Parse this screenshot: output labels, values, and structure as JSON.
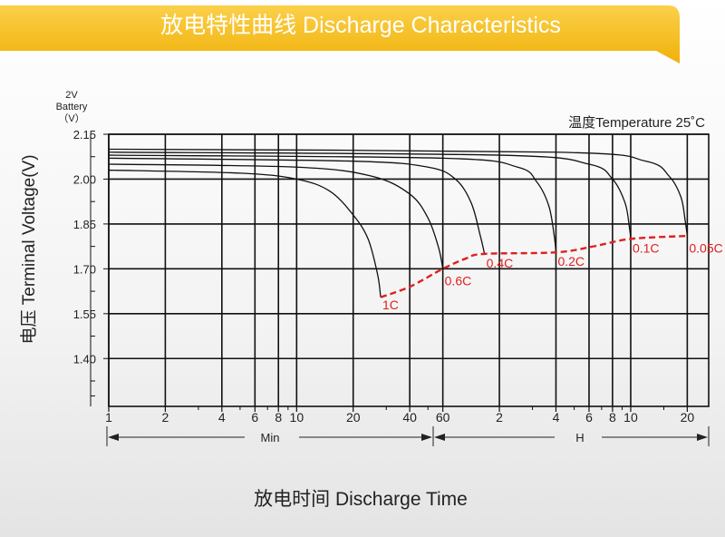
{
  "header": {
    "title": "放电特性曲线 Discharge Characteristics",
    "banner_color": "#f6be1a"
  },
  "chart_data": {
    "type": "line",
    "title": "放电特性曲线 Discharge Characteristics",
    "xlabel": "放电时间 Discharge Time",
    "ylabel": "电压 Terminal Voltage(V)",
    "y_unit_label": [
      "2V",
      "Battery",
      "（V）"
    ],
    "annotation": "温度Temperature 25˚C",
    "x_scale": "log",
    "x_unit": "minutes",
    "xlim": [
      1,
      1560
    ],
    "ylim": [
      1.24,
      2.15
    ],
    "y_ticks": [
      1.4,
      1.55,
      1.7,
      1.85,
      2.0,
      2.15
    ],
    "x_ticks_min": [
      1,
      2,
      4,
      6,
      8,
      10,
      20,
      40,
      60
    ],
    "x_ticks_hour": [
      2,
      4,
      6,
      8,
      10,
      20
    ],
    "x_segment_labels": {
      "min": "Min",
      "hour": "H"
    },
    "grid": true,
    "series": [
      {
        "name": "1C",
        "x": [
          1,
          5,
          10,
          15,
          20,
          24,
          27,
          28
        ],
        "y": [
          2.03,
          2.02,
          2.0,
          1.96,
          1.88,
          1.8,
          1.68,
          1.605
        ]
      },
      {
        "name": "0.6C",
        "x": [
          1,
          10,
          25,
          40,
          50,
          57,
          60
        ],
        "y": [
          2.05,
          2.04,
          2.01,
          1.95,
          1.87,
          1.77,
          1.7
        ]
      },
      {
        "name": "0.4C",
        "x": [
          1,
          20,
          50,
          70,
          85,
          95,
          100
        ],
        "y": [
          2.07,
          2.06,
          2.04,
          2.0,
          1.92,
          1.81,
          1.75
        ]
      },
      {
        "name": "0.2C",
        "x": [
          1,
          60,
          150,
          190,
          220,
          235,
          240
        ],
        "y": [
          2.08,
          2.07,
          2.04,
          1.99,
          1.91,
          1.81,
          1.755
        ]
      },
      {
        "name": "0.1C",
        "x": [
          1,
          120,
          360,
          480,
          560,
          590,
          600
        ],
        "y": [
          2.09,
          2.08,
          2.05,
          2.0,
          1.92,
          1.84,
          1.8
        ]
      },
      {
        "name": "0.05C",
        "x": [
          1,
          240,
          720,
          960,
          1110,
          1170,
          1200
        ],
        "y": [
          2.1,
          2.09,
          2.06,
          2.01,
          1.94,
          1.86,
          1.81
        ]
      }
    ],
    "end_voltage_curve": {
      "color": "#e02020",
      "x": [
        28,
        40,
        60,
        80,
        100,
        240,
        380,
        600,
        1200
      ],
      "y": [
        1.605,
        1.64,
        1.7,
        1.735,
        1.75,
        1.755,
        1.775,
        1.8,
        1.81
      ]
    },
    "rate_labels": [
      {
        "text": "1C",
        "x": 28,
        "y": 1.58
      },
      {
        "text": "0.6C",
        "x": 60,
        "y": 1.66
      },
      {
        "text": "0.4C",
        "x": 100,
        "y": 1.72
      },
      {
        "text": "0.2C",
        "x": 240,
        "y": 1.725
      },
      {
        "text": "0.1C",
        "x": 600,
        "y": 1.77
      },
      {
        "text": "0.05C",
        "x": 1200,
        "y": 1.77
      }
    ]
  }
}
